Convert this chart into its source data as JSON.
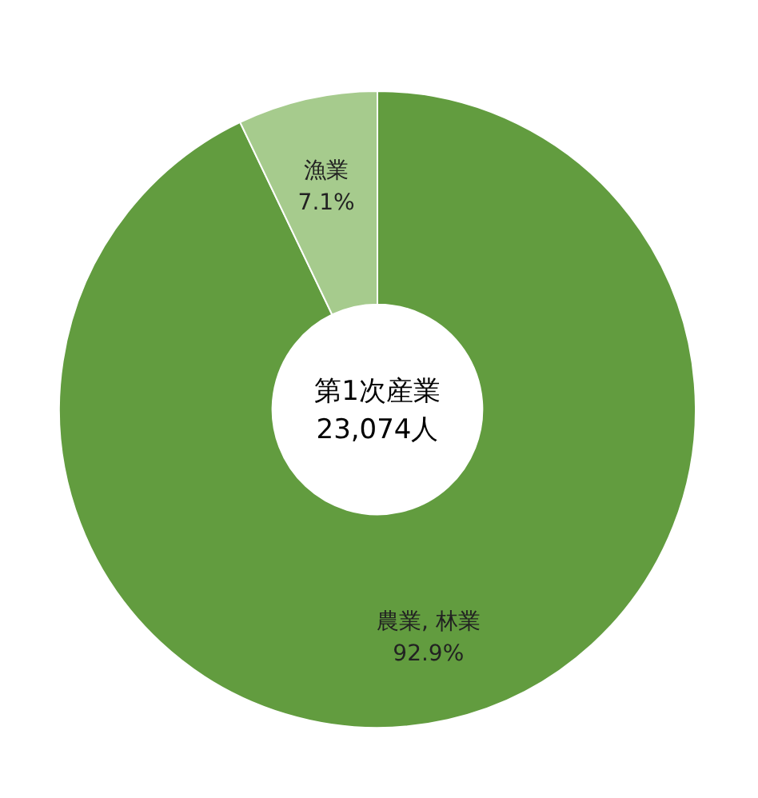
{
  "chart_data": {
    "type": "donut",
    "categories": [
      "農業, 林業",
      "漁業"
    ],
    "values": [
      92.9,
      7.1
    ],
    "colors": [
      "#629c3f",
      "#a6cb8d"
    ],
    "value_labels": [
      "92.9%",
      "7.1%"
    ],
    "annotations": [
      "第1次産業",
      "23,074人"
    ]
  }
}
